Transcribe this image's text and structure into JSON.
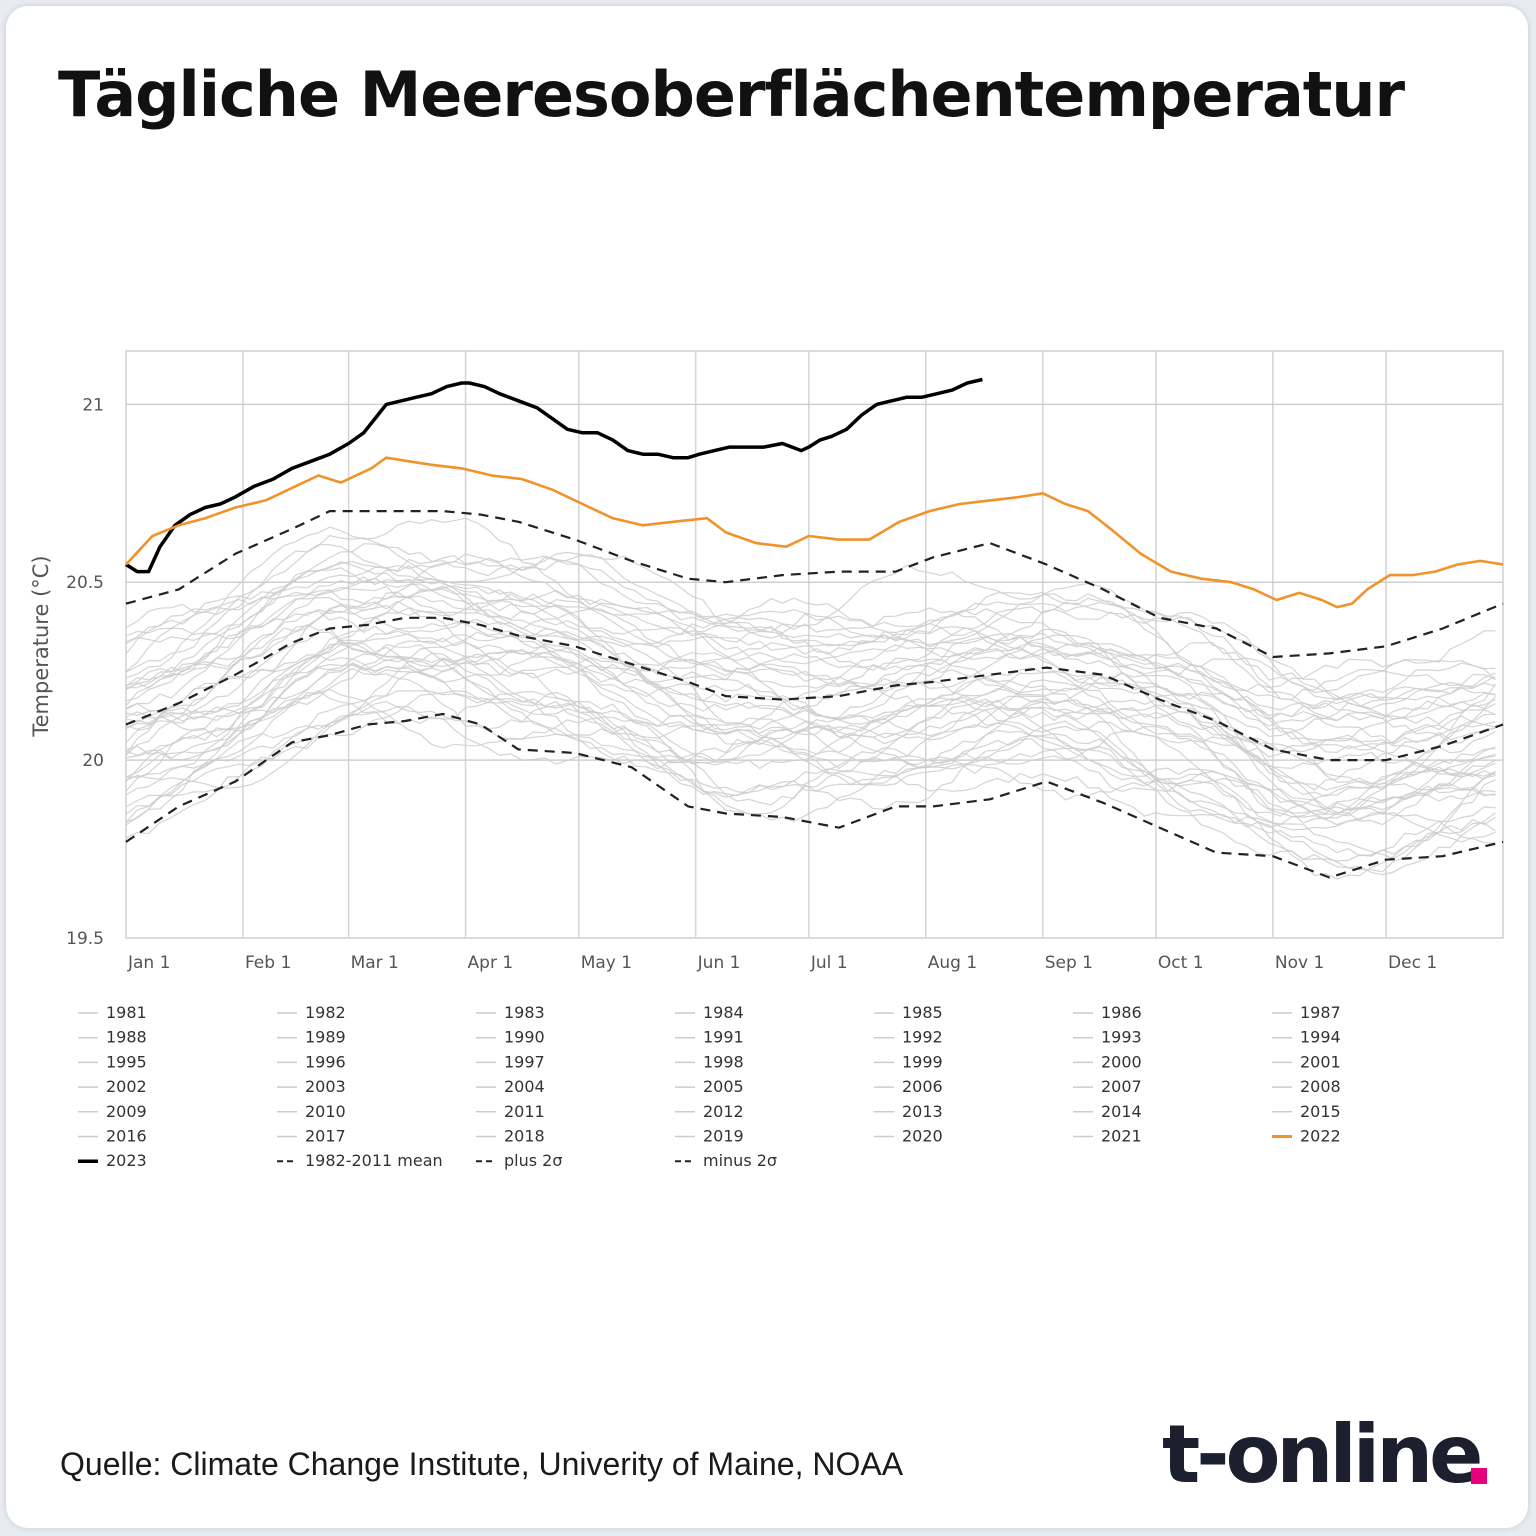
{
  "title": "Tägliche Meeresoberflächentemperatur",
  "source": "Quelle: Climate Change Institute, Univerity of Maine, NOAA",
  "logo": {
    "text": "t-online",
    "dot_color": "#e6007e"
  },
  "chart_data": {
    "type": "line",
    "ylabel": "Temperature (°C)",
    "xlabel": "",
    "ylim": [
      19.5,
      21.15
    ],
    "xlim": [
      1,
      366
    ],
    "yticks": [
      19.5,
      20,
      20.5,
      21
    ],
    "grid": true,
    "legend_position": "bottom",
    "x_tick_labels": [
      {
        "day": 1,
        "label": "Jan 1"
      },
      {
        "day": 32,
        "label": "Feb 1"
      },
      {
        "day": 60,
        "label": "Mar 1"
      },
      {
        "day": 91,
        "label": "Apr 1"
      },
      {
        "day": 121,
        "label": "May 1"
      },
      {
        "day": 152,
        "label": "Jun 1"
      },
      {
        "day": 182,
        "label": "Jul 1"
      },
      {
        "day": 213,
        "label": "Aug 1"
      },
      {
        "day": 244,
        "label": "Sep 1"
      },
      {
        "day": 274,
        "label": "Oct 1"
      },
      {
        "day": 305,
        "label": "Nov 1"
      },
      {
        "day": 335,
        "label": "Dec 1"
      }
    ],
    "colors": {
      "historical": "#cccccc",
      "y2022": "#f0932b",
      "y2023": "#000000",
      "stats": "#222222"
    },
    "legend": [
      "1981",
      "1982",
      "1983",
      "1984",
      "1985",
      "1986",
      "1987",
      "1988",
      "1989",
      "1990",
      "1991",
      "1992",
      "1993",
      "1994",
      "1995",
      "1996",
      "1997",
      "1998",
      "1999",
      "2000",
      "2001",
      "2002",
      "2003",
      "2004",
      "2005",
      "2006",
      "2007",
      "2008",
      "2009",
      "2010",
      "2011",
      "2012",
      "2013",
      "2014",
      "2015",
      "2016",
      "2017",
      "2018",
      "2019",
      "2020",
      "2021",
      "2022",
      "2023",
      "1982-2011 mean",
      "plus 2σ",
      "minus 2σ"
    ],
    "series": [
      {
        "name": "2023",
        "color": "#000000",
        "x": [
          1,
          4,
          7,
          10,
          14,
          18,
          22,
          26,
          30,
          35,
          40,
          45,
          50,
          55,
          60,
          64,
          67,
          70,
          74,
          78,
          82,
          86,
          90,
          92,
          96,
          100,
          105,
          110,
          114,
          118,
          122,
          126,
          130,
          134,
          138,
          142,
          146,
          150,
          153,
          157,
          161,
          165,
          170,
          175,
          180,
          182,
          185,
          188,
          192,
          196,
          200,
          204,
          208,
          212,
          216,
          220,
          224,
          228
        ],
        "values": [
          20.55,
          20.53,
          20.53,
          20.6,
          20.66,
          20.69,
          20.71,
          20.72,
          20.74,
          20.77,
          20.79,
          20.82,
          20.84,
          20.86,
          20.89,
          20.92,
          20.96,
          21.0,
          21.01,
          21.02,
          21.03,
          21.05,
          21.06,
          21.06,
          21.05,
          21.03,
          21.01,
          20.99,
          20.96,
          20.93,
          20.92,
          20.92,
          20.9,
          20.87,
          20.86,
          20.86,
          20.85,
          20.85,
          20.86,
          20.87,
          20.88,
          20.88,
          20.88,
          20.89,
          20.87,
          20.88,
          20.9,
          20.91,
          20.93,
          20.97,
          21.0,
          21.01,
          21.02,
          21.02,
          21.03,
          21.04,
          21.06,
          21.07
        ]
      },
      {
        "name": "2022",
        "color": "#f0932b",
        "x": [
          1,
          8,
          15,
          22,
          30,
          38,
          46,
          52,
          58,
          66,
          70,
          76,
          82,
          90,
          98,
          106,
          114,
          122,
          130,
          138,
          146,
          155,
          160,
          168,
          176,
          182,
          190,
          198,
          206,
          214,
          222,
          230,
          238,
          244,
          250,
          256,
          262,
          270,
          278,
          286,
          294,
          300,
          306,
          312,
          318,
          322,
          326,
          330,
          336,
          342,
          348,
          354,
          360,
          366
        ],
        "values": [
          20.55,
          20.63,
          20.66,
          20.68,
          20.71,
          20.73,
          20.77,
          20.8,
          20.78,
          20.82,
          20.85,
          20.84,
          20.83,
          20.82,
          20.8,
          20.79,
          20.76,
          20.72,
          20.68,
          20.66,
          20.67,
          20.68,
          20.64,
          20.61,
          20.6,
          20.63,
          20.62,
          20.62,
          20.67,
          20.7,
          20.72,
          20.73,
          20.74,
          20.75,
          20.72,
          20.7,
          20.65,
          20.58,
          20.53,
          20.51,
          20.5,
          20.48,
          20.45,
          20.47,
          20.45,
          20.43,
          20.44,
          20.48,
          20.52,
          20.52,
          20.53,
          20.55,
          20.56,
          20.55
        ]
      },
      {
        "name": "1982-2011 mean",
        "color": "#222222",
        "dash": "10,7",
        "x": [
          1,
          15,
          30,
          45,
          55,
          65,
          75,
          85,
          95,
          105,
          120,
          135,
          150,
          160,
          175,
          190,
          205,
          215,
          230,
          245,
          260,
          275,
          290,
          305,
          320,
          335,
          350,
          366
        ],
        "values": [
          20.1,
          20.16,
          20.24,
          20.33,
          20.37,
          20.38,
          20.4,
          20.4,
          20.38,
          20.35,
          20.32,
          20.27,
          20.22,
          20.18,
          20.17,
          20.18,
          20.21,
          20.22,
          20.24,
          20.26,
          20.24,
          20.17,
          20.11,
          20.03,
          20.0,
          20.0,
          20.04,
          20.1
        ]
      },
      {
        "name": "plus 2σ",
        "color": "#222222",
        "dash": "10,7",
        "x": [
          1,
          15,
          30,
          45,
          55,
          65,
          75,
          85,
          95,
          105,
          120,
          135,
          150,
          160,
          175,
          190,
          205,
          215,
          230,
          245,
          260,
          275,
          290,
          305,
          320,
          335,
          350,
          366
        ],
        "values": [
          20.44,
          20.48,
          20.58,
          20.65,
          20.7,
          20.7,
          20.7,
          20.7,
          20.69,
          20.67,
          20.62,
          20.56,
          20.51,
          20.5,
          20.52,
          20.53,
          20.53,
          20.57,
          20.61,
          20.55,
          20.48,
          20.4,
          20.37,
          20.29,
          20.3,
          20.32,
          20.37,
          20.44
        ]
      },
      {
        "name": "minus 2σ",
        "color": "#222222",
        "dash": "10,7",
        "x": [
          1,
          15,
          30,
          45,
          55,
          65,
          75,
          85,
          95,
          105,
          120,
          135,
          150,
          160,
          175,
          190,
          205,
          215,
          230,
          245,
          260,
          275,
          290,
          305,
          320,
          335,
          350,
          366
        ],
        "values": [
          19.77,
          19.87,
          19.94,
          20.05,
          20.07,
          20.1,
          20.11,
          20.13,
          20.1,
          20.03,
          20.02,
          19.98,
          19.87,
          19.85,
          19.84,
          19.81,
          19.87,
          19.87,
          19.89,
          19.94,
          19.88,
          19.81,
          19.74,
          19.73,
          19.67,
          19.72,
          19.73,
          19.77
        ]
      }
    ]
  }
}
